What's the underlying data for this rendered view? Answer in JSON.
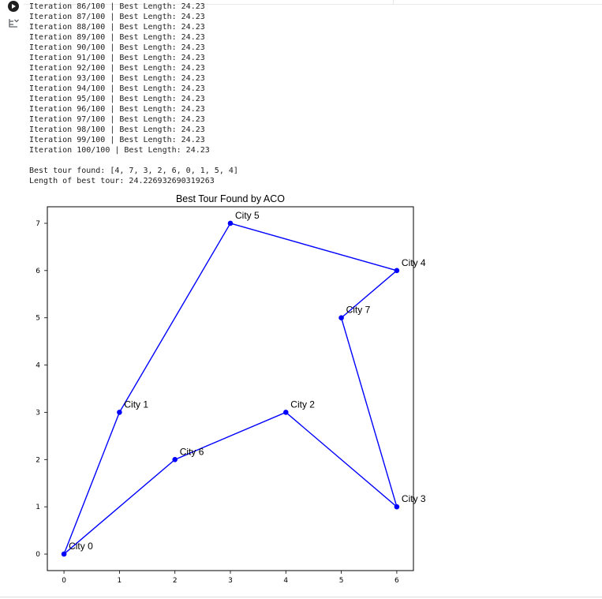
{
  "log_lines": [
    "Iteration 86/100 | Best Length: 24.23",
    "Iteration 87/100 | Best Length: 24.23",
    "Iteration 88/100 | Best Length: 24.23",
    "Iteration 89/100 | Best Length: 24.23",
    "Iteration 90/100 | Best Length: 24.23",
    "Iteration 91/100 | Best Length: 24.23",
    "Iteration 92/100 | Best Length: 24.23",
    "Iteration 93/100 | Best Length: 24.23",
    "Iteration 94/100 | Best Length: 24.23",
    "Iteration 95/100 | Best Length: 24.23",
    "Iteration 96/100 | Best Length: 24.23",
    "Iteration 97/100 | Best Length: 24.23",
    "Iteration 98/100 | Best Length: 24.23",
    "Iteration 99/100 | Best Length: 24.23",
    "Iteration 100/100 | Best Length: 24.23"
  ],
  "best_tour_text": "Best tour found: [4, 7, 3, 2, 6, 0, 1, 5, 4]",
  "length_text": "Length of best tour: 24.226932690319263",
  "icons": {
    "run": "play-icon",
    "output": "output-toggle-icon"
  },
  "colors": {
    "route": "#0000ff",
    "axes": "#000000"
  },
  "chart_data": {
    "type": "scatter",
    "title": "Best Tour Found by ACO",
    "xlabel": "",
    "ylabel": "",
    "xlim": [
      -0.3,
      6.3
    ],
    "ylim": [
      -0.35,
      7.35
    ],
    "xticks": [
      0,
      1,
      2,
      3,
      4,
      5,
      6
    ],
    "yticks": [
      0,
      1,
      2,
      3,
      4,
      5,
      6,
      7
    ],
    "grid": false,
    "cities": [
      {
        "label": "City 0",
        "x": 0,
        "y": 0
      },
      {
        "label": "City 1",
        "x": 1,
        "y": 3
      },
      {
        "label": "City 2",
        "x": 4,
        "y": 3
      },
      {
        "label": "City 3",
        "x": 6,
        "y": 1
      },
      {
        "label": "City 4",
        "x": 6,
        "y": 6
      },
      {
        "label": "City 5",
        "x": 3,
        "y": 7
      },
      {
        "label": "City 6",
        "x": 2,
        "y": 2
      },
      {
        "label": "City 7",
        "x": 5,
        "y": 5
      }
    ],
    "tour": [
      4,
      7,
      3,
      2,
      6,
      0,
      1,
      5,
      4
    ]
  }
}
